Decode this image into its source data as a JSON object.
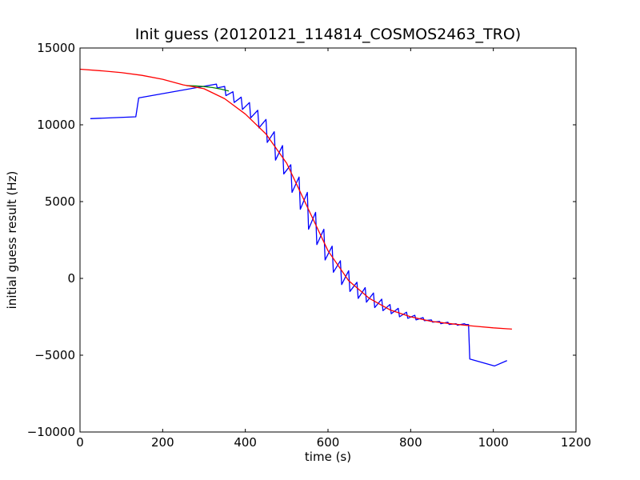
{
  "chart_data": {
    "type": "line",
    "title": "Init guess (20120121_114814_COSMOS2463_TRO)",
    "xlabel": "time (s)",
    "ylabel": "initial guess result (Hz)",
    "xlim": [
      0,
      1200
    ],
    "ylim": [
      -10000,
      15000
    ],
    "xticks": [
      0,
      200,
      400,
      600,
      800,
      1000,
      1200
    ],
    "yticks": [
      -10000,
      -5000,
      0,
      5000,
      10000,
      15000
    ],
    "xtick_labels": [
      "0",
      "200",
      "400",
      "600",
      "800",
      "1000",
      "1200"
    ],
    "ytick_labels": [
      "−10000",
      "−5000",
      "0",
      "5000",
      "10000",
      "15000"
    ],
    "grid": false,
    "legend": "none",
    "series": [
      {
        "color": "#0000ff",
        "x": [
          25,
          135,
          142,
          330,
          332,
          350,
          353,
          370,
          373,
          390,
          393,
          410,
          413,
          430,
          433,
          450,
          453,
          470,
          473,
          490,
          493,
          510,
          513,
          530,
          533,
          550,
          553,
          570,
          573,
          590,
          593,
          610,
          613,
          630,
          633,
          650,
          653,
          670,
          673,
          690,
          693,
          710,
          713,
          730,
          733,
          750,
          753,
          770,
          773,
          790,
          793,
          810,
          813,
          830,
          833,
          850,
          853,
          870,
          873,
          890,
          893,
          910,
          913,
          930,
          933,
          940,
          943,
          1003,
          1033
        ],
        "y": [
          10400,
          10520,
          11750,
          12650,
          12400,
          12500,
          11900,
          12150,
          11450,
          11800,
          11000,
          11450,
          10450,
          10950,
          9800,
          10350,
          8850,
          9550,
          7700,
          8650,
          6800,
          7400,
          5600,
          6600,
          4500,
          5600,
          3200,
          4300,
          2200,
          3200,
          1200,
          2100,
          400,
          1150,
          -400,
          500,
          -850,
          -250,
          -1300,
          -600,
          -1550,
          -950,
          -1900,
          -1350,
          -2100,
          -1700,
          -2300,
          -1950,
          -2500,
          -2200,
          -2600,
          -2400,
          -2700,
          -2550,
          -2750,
          -2700,
          -2850,
          -2800,
          -2950,
          -2850,
          -3000,
          -2950,
          -3050,
          -2950,
          -3000,
          -3000,
          -5250,
          -5700,
          -5350
        ]
      },
      {
        "color": "#008000",
        "x": [
          258,
          280,
          300,
          320,
          340,
          360
        ],
        "y": [
          12550,
          12530,
          12490,
          12430,
          12330,
          12200
        ]
      },
      {
        "color": "#ff0000",
        "x": [
          0,
          50,
          100,
          150,
          200,
          250,
          300,
          350,
          400,
          450,
          500,
          550,
          600,
          650,
          700,
          750,
          800,
          850,
          900,
          950,
          1000,
          1045
        ],
        "y": [
          13620,
          13520,
          13400,
          13220,
          12960,
          12600,
          12350,
          11700,
          10700,
          9400,
          7500,
          4650,
          1800,
          -150,
          -1300,
          -2050,
          -2500,
          -2800,
          -2960,
          -3100,
          -3220,
          -3300
        ]
      }
    ]
  }
}
